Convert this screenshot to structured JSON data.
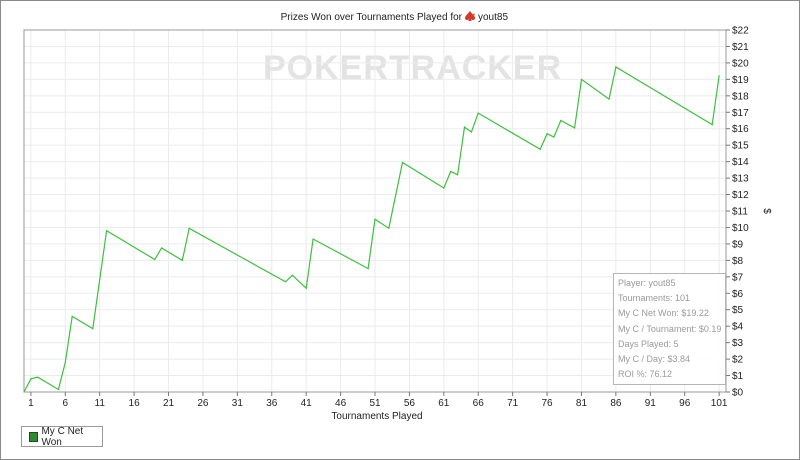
{
  "chart_data": {
    "type": "line",
    "title": "Prizes Won over Tournaments Played for",
    "player_name": "yout85",
    "watermark": "POKERTRACKER",
    "xlabel": "Tournaments Played",
    "ylabel": "$",
    "xlim": [
      0,
      102
    ],
    "ylim": [
      0,
      22
    ],
    "x_ticks": [
      1,
      6,
      11,
      16,
      21,
      26,
      31,
      36,
      41,
      46,
      51,
      56,
      61,
      66,
      71,
      76,
      81,
      86,
      91,
      96,
      101
    ],
    "y_ticks": [
      "$0",
      "$1",
      "$2",
      "$3",
      "$4",
      "$5",
      "$6",
      "$7",
      "$8",
      "$9",
      "$10",
      "$11",
      "$12",
      "$13",
      "$14",
      "$15",
      "$16",
      "$17",
      "$18",
      "$19",
      "$20",
      "$21",
      "$22"
    ],
    "grid": true,
    "legend_position": "bottom-left",
    "series": [
      {
        "name": "My C Net Won",
        "color": "#3fbf3f",
        "x": [
          0,
          1,
          2,
          5,
          6,
          7,
          10,
          12,
          19,
          20,
          23,
          24,
          38,
          39,
          41,
          42,
          50,
          51,
          53,
          55,
          61,
          62,
          63,
          64,
          65,
          66,
          75,
          76,
          77,
          78,
          80,
          81,
          85,
          86,
          100,
          101
        ],
        "y": [
          0,
          0.8,
          0.9,
          0.15,
          1.8,
          4.6,
          3.85,
          9.8,
          8.05,
          8.75,
          8.0,
          9.95,
          6.7,
          7.1,
          6.3,
          9.3,
          7.5,
          10.5,
          9.95,
          13.95,
          12.4,
          13.4,
          13.2,
          16.1,
          15.8,
          16.95,
          14.75,
          15.7,
          15.5,
          16.5,
          16.05,
          19.0,
          17.8,
          19.75,
          16.25,
          19.22
        ]
      }
    ]
  },
  "legend": {
    "label": "My C Net Won"
  },
  "stats": {
    "player": "Player: yout85",
    "tournaments": "Tournaments: 101",
    "net_won": "My C Net Won: $19.22",
    "per_tournament": "My C / Tournament: $0.19",
    "days_played": "Days Played: 5",
    "per_day": "My C / Day: $3.84",
    "roi": "ROI %: 76.12"
  }
}
